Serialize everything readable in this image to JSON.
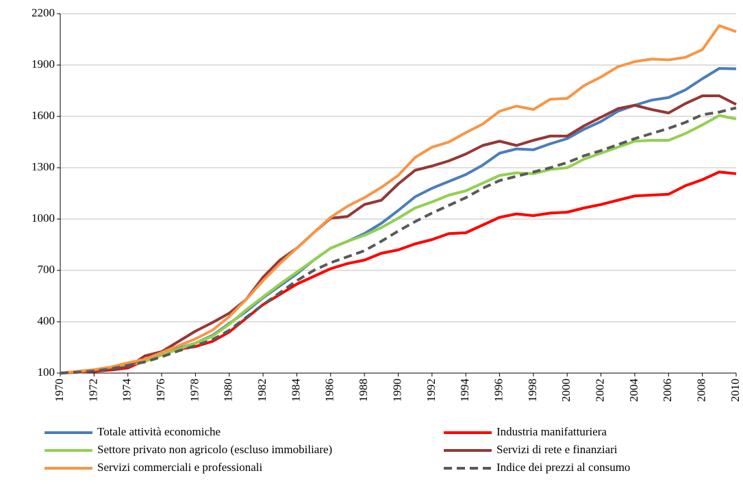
{
  "chart_data": {
    "type": "line",
    "x": [
      1970,
      1971,
      1972,
      1973,
      1974,
      1975,
      1976,
      1977,
      1978,
      1979,
      1980,
      1981,
      1982,
      1983,
      1984,
      1985,
      1986,
      1987,
      1988,
      1989,
      1990,
      1991,
      1992,
      1993,
      1994,
      1995,
      1996,
      1997,
      1998,
      1999,
      2000,
      2001,
      2002,
      2003,
      2004,
      2005,
      2006,
      2007,
      2008,
      2009,
      2010
    ],
    "xlim": [
      1970,
      2010
    ],
    "xticks": [
      1970,
      1972,
      1974,
      1976,
      1978,
      1980,
      1982,
      1984,
      1986,
      1988,
      1990,
      1992,
      1994,
      1996,
      1998,
      2000,
      2002,
      2004,
      2006,
      2008,
      2010
    ],
    "ylim": [
      100,
      2200
    ],
    "yticks": [
      100,
      400,
      700,
      1000,
      1300,
      1600,
      1900,
      2200
    ],
    "grid": true,
    "legend": "bottom",
    "series": [
      {
        "name": "Totale attività economiche",
        "color": "#4a7ebb",
        "values": [
          100,
          107,
          115,
          128,
          150,
          170,
          205,
          245,
          275,
          320,
          390,
          460,
          540,
          610,
          680,
          760,
          830,
          870,
          915,
          975,
          1050,
          1130,
          1180,
          1220,
          1260,
          1315,
          1385,
          1410,
          1405,
          1440,
          1470,
          1525,
          1570,
          1630,
          1665,
          1695,
          1710,
          1755,
          1820,
          1880,
          1878
        ]
      },
      {
        "name": "Industria manifatturiera",
        "color": "#ff0000",
        "values": [
          100,
          105,
          110,
          118,
          130,
          175,
          210,
          240,
          255,
          285,
          340,
          420,
          500,
          560,
          620,
          665,
          710,
          740,
          760,
          800,
          820,
          855,
          880,
          915,
          920,
          965,
          1010,
          1030,
          1020,
          1035,
          1040,
          1065,
          1085,
          1110,
          1135,
          1140,
          1145,
          1195,
          1230,
          1275,
          1265
        ]
      },
      {
        "name": "Settore privato non agricolo (escluso immobiliare)",
        "color": "#92d050",
        "values": [
          100,
          107,
          115,
          128,
          148,
          168,
          205,
          240,
          275,
          315,
          385,
          470,
          545,
          620,
          690,
          760,
          830,
          870,
          905,
          950,
          1005,
          1065,
          1100,
          1140,
          1165,
          1210,
          1255,
          1270,
          1265,
          1290,
          1300,
          1350,
          1385,
          1420,
          1455,
          1460,
          1460,
          1500,
          1550,
          1605,
          1585
        ]
      },
      {
        "name": "Servizi di rete e finanziari",
        "color": "#953735",
        "values": [
          100,
          108,
          115,
          122,
          135,
          200,
          225,
          285,
          345,
          395,
          450,
          530,
          660,
          760,
          830,
          920,
          1005,
          1015,
          1085,
          1110,
          1205,
          1285,
          1310,
          1340,
          1380,
          1430,
          1455,
          1430,
          1460,
          1485,
          1485,
          1545,
          1595,
          1645,
          1665,
          1640,
          1620,
          1675,
          1720,
          1720,
          1670
        ]
      },
      {
        "name": "Servizi commerciali e professionali",
        "color": "#f79646",
        "values": [
          100,
          110,
          120,
          135,
          160,
          180,
          220,
          260,
          300,
          350,
          430,
          530,
          640,
          740,
          830,
          920,
          1010,
          1075,
          1125,
          1185,
          1255,
          1360,
          1420,
          1450,
          1505,
          1555,
          1630,
          1660,
          1640,
          1700,
          1705,
          1780,
          1830,
          1890,
          1920,
          1935,
          1930,
          1945,
          1990,
          2130,
          2095
        ]
      },
      {
        "name": "Indice dei prezzi al consumo",
        "color": "#595959",
        "dashed": true,
        "values": [
          100,
          105,
          112,
          125,
          145,
          165,
          195,
          230,
          260,
          295,
          350,
          425,
          500,
          570,
          640,
          700,
          745,
          780,
          815,
          870,
          930,
          985,
          1035,
          1080,
          1125,
          1180,
          1225,
          1250,
          1275,
          1300,
          1330,
          1370,
          1400,
          1435,
          1470,
          1500,
          1530,
          1565,
          1610,
          1625,
          1650
        ]
      }
    ]
  }
}
